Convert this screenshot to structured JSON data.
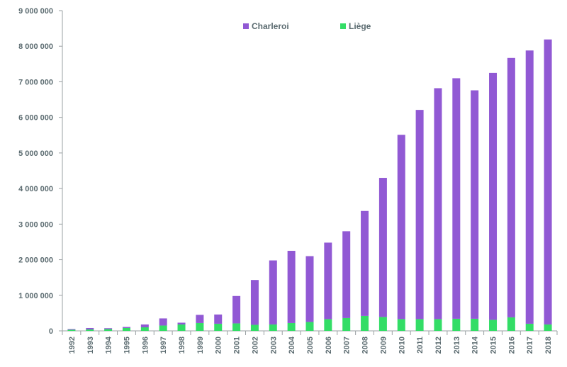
{
  "chart_data": {
    "type": "bar",
    "stacked": true,
    "categories": [
      "1992",
      "1993",
      "1994",
      "1995",
      "1996",
      "1997",
      "1998",
      "1999",
      "2000",
      "2001",
      "2002",
      "2003",
      "2004",
      "2005",
      "2006",
      "2007",
      "2008",
      "2009",
      "2010",
      "2011",
      "2012",
      "2013",
      "2014",
      "2015",
      "2016",
      "2017",
      "2018"
    ],
    "series": [
      {
        "name": "Liège",
        "color": "#33dd66",
        "values": [
          30000,
          40000,
          50000,
          80000,
          100000,
          150000,
          180000,
          220000,
          200000,
          210000,
          170000,
          180000,
          220000,
          250000,
          330000,
          360000,
          420000,
          390000,
          330000,
          330000,
          330000,
          340000,
          340000,
          310000,
          380000,
          200000,
          180000
        ]
      },
      {
        "name": "Charleroi",
        "color": "#9159d4",
        "values": [
          20000,
          40000,
          25000,
          30000,
          80000,
          200000,
          50000,
          230000,
          260000,
          770000,
          1260000,
          1800000,
          2030000,
          1850000,
          2150000,
          2440000,
          2950000,
          3910000,
          5180000,
          5880000,
          6490000,
          6760000,
          6420000,
          6940000,
          7290000,
          7680000,
          8010000
        ]
      }
    ],
    "legend_order": [
      "Charleroi",
      "Liège"
    ],
    "legend_position": "top-center",
    "ylim": [
      0,
      9000000
    ],
    "yticks": [
      0,
      1000000,
      2000000,
      3000000,
      4000000,
      5000000,
      6000000,
      7000000,
      8000000,
      9000000
    ],
    "ytick_labels": [
      "0",
      "1 000 000",
      "2 000 000",
      "3 000 000",
      "4 000 000",
      "5 000 000",
      "6 000 000",
      "7 000 000",
      "8 000 000",
      "9 000 000"
    ],
    "grid": false,
    "title": "",
    "xlabel": "",
    "ylabel": ""
  }
}
